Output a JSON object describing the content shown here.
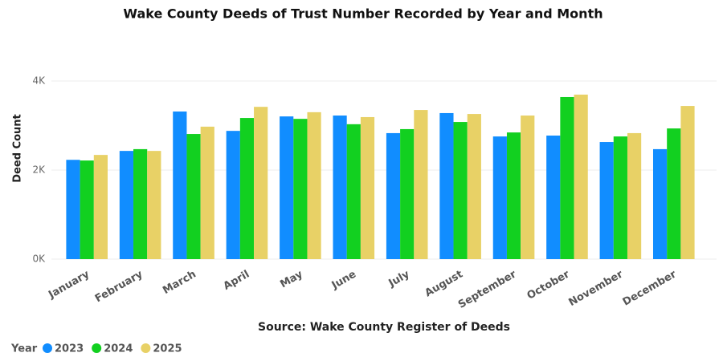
{
  "chart_data": {
    "type": "bar",
    "title": "Wake County Deeds of Trust Number Recorded by Year and Month",
    "y_label": "Deed Count",
    "source": "Source: Wake County Register of Deeds",
    "legend_title": "Year",
    "categories": [
      "January",
      "February",
      "March",
      "April",
      "May",
      "June",
      "July",
      "August",
      "September",
      "October",
      "November",
      "December"
    ],
    "series": [
      {
        "name": "2023",
        "color": "#118dff",
        "values": [
          2230,
          2430,
          3315,
          2880,
          3205,
          3225,
          2830,
          3280,
          2755,
          2775,
          2630,
          2470
        ]
      },
      {
        "name": "2024",
        "color": "#12d020",
        "values": [
          2215,
          2470,
          2810,
          3170,
          3150,
          3030,
          2920,
          3080,
          2845,
          3640,
          2755,
          2935
        ]
      },
      {
        "name": "2025",
        "color": "#e8d166",
        "values": [
          2340,
          2430,
          2975,
          3420,
          3300,
          3190,
          3350,
          3260,
          3225,
          3695,
          2830,
          3440
        ]
      }
    ],
    "ylim": [
      0,
      4000
    ],
    "yticks": [
      {
        "value": 0,
        "label": "0K"
      },
      {
        "value": 2000,
        "label": "2K"
      },
      {
        "value": 4000,
        "label": "4K"
      }
    ],
    "grid": true
  }
}
